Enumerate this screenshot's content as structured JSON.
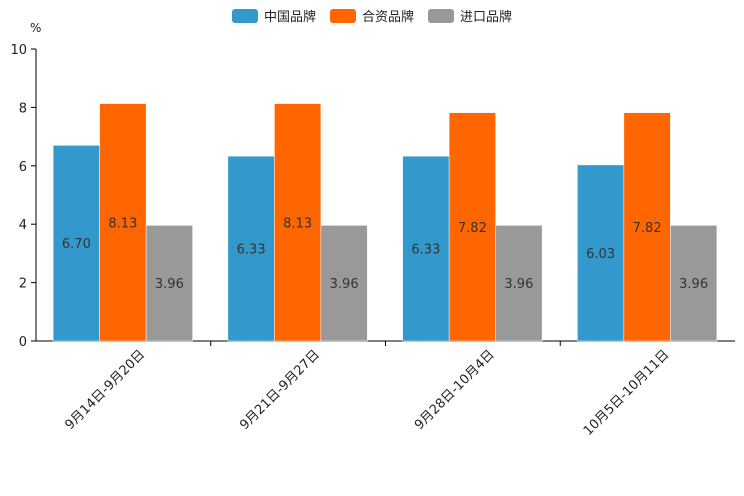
{
  "chart_data": {
    "type": "bar",
    "unit_label": "%",
    "categories": [
      "9月14日-9月20日",
      "9月21日-9月27日",
      "9月28日-10月4日",
      "10月5日-10月11日"
    ],
    "series": [
      {
        "name": "中国品牌",
        "color": "#3399cc",
        "values": [
          6.7,
          6.33,
          6.33,
          6.03
        ]
      },
      {
        "name": "合资品牌",
        "color": "#ff6600",
        "values": [
          8.13,
          8.13,
          7.82,
          7.82
        ]
      },
      {
        "name": "进口品牌",
        "color": "#999999",
        "values": [
          3.96,
          3.96,
          3.96,
          3.96
        ]
      }
    ],
    "ylim": [
      0,
      10
    ],
    "yticks": [
      0,
      2,
      4,
      6,
      8,
      10
    ],
    "legend_position": "top-center",
    "grid": false
  }
}
